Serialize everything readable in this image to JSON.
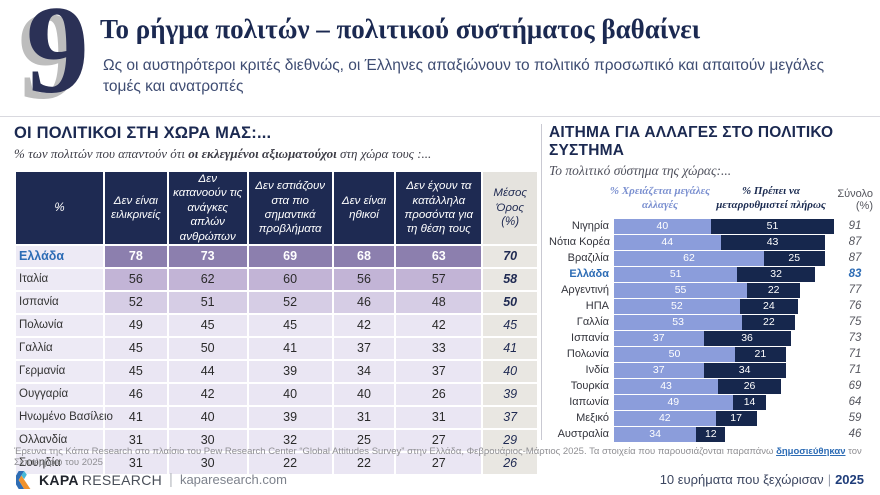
{
  "header": {
    "number": "9",
    "title": "Το ρήγμα πολιτών – πολιτικού συστήματος βαθαίνει",
    "subtitle": "Ως οι αυστηρότεροι κριτές διεθνώς, οι Έλληνες απαξιώνουν το πολιτικό προσωπικό και απαιτούν μεγάλες τομές και ανατροπές"
  },
  "left_panel": {
    "title": "ΟΙ ΠΟΛΙΤΙΚΟΙ ΣΤΗ ΧΩΡΑ ΜΑΣ:...",
    "subtitle_prefix": "% των πολιτών που απαντούν ότι ",
    "subtitle_bold": "οι εκλεγμένοι αξιωματούχοι",
    "subtitle_suffix": " στη χώρα τους :...",
    "table": {
      "columns": [
        "%",
        "Δεν είναι ειλικρινείς",
        "Δεν κατανοούν τις ανάγκες απλών ανθρώπων",
        "Δεν εστιάζουν στα πιο σημαντικά προβλήματα",
        "Δεν είναι ηθικοί",
        "Δεν έχουν τα κατάλληλα προσόντα για τη θέση τους",
        "Μέσος Όρος (%)"
      ],
      "rows": [
        {
          "country": "Ελλάδα",
          "values": [
            78,
            73,
            69,
            68,
            63
          ],
          "avg": 70,
          "highlight": true
        },
        {
          "country": "Ιταλία",
          "values": [
            56,
            62,
            60,
            56,
            57
          ],
          "avg": 58
        },
        {
          "country": "Ισπανία",
          "values": [
            52,
            51,
            52,
            46,
            48
          ],
          "avg": 50
        },
        {
          "country": "Πολωνία",
          "values": [
            49,
            45,
            45,
            42,
            42
          ],
          "avg": 45
        },
        {
          "country": "Γαλλία",
          "values": [
            45,
            50,
            41,
            37,
            33
          ],
          "avg": 41
        },
        {
          "country": "Γερμανία",
          "values": [
            45,
            44,
            39,
            34,
            37
          ],
          "avg": 40
        },
        {
          "country": "Ουγγαρία",
          "values": [
            46,
            42,
            40,
            40,
            26
          ],
          "avg": 39
        },
        {
          "country": "Ηνωμένο Βασίλειο",
          "values": [
            41,
            40,
            39,
            31,
            31
          ],
          "avg": 37
        },
        {
          "country": "Ολλανδία",
          "values": [
            31,
            30,
            32,
            25,
            27
          ],
          "avg": 29
        },
        {
          "country": "Σουηδία",
          "values": [
            31,
            30,
            22,
            22,
            27
          ],
          "avg": 26
        }
      ]
    }
  },
  "right_panel": {
    "title": "ΑΙΤΗΜΑ ΓΙΑ ΑΛΛΑΓΕΣ ΣΤΟ ΠΟΛΙΤΙΚΟ ΣΥΣΤΗΜΑ",
    "subtitle": "Το πολιτικό σύστημα της χώρας:...",
    "legend_light": "% Χρειάζεται μεγάλες αλλαγές",
    "legend_dark": "% Πρέπει να μεταρρυθμιστεί πλήρως",
    "legend_total": "Σύνολο (%)",
    "bars": [
      {
        "country": "Νιγηρία",
        "light": 40,
        "dark": 51,
        "total": 91
      },
      {
        "country": "Νότια Κορέα",
        "light": 44,
        "dark": 43,
        "total": 87
      },
      {
        "country": "Βραζιλία",
        "light": 62,
        "dark": 25,
        "total": 87
      },
      {
        "country": "Ελλάδα",
        "light": 51,
        "dark": 32,
        "total": 83,
        "highlight": true
      },
      {
        "country": "Αργεντινή",
        "light": 55,
        "dark": 22,
        "total": 77
      },
      {
        "country": "ΗΠΑ",
        "light": 52,
        "dark": 24,
        "total": 76
      },
      {
        "country": "Γαλλία",
        "light": 53,
        "dark": 22,
        "total": 75
      },
      {
        "country": "Ισπανία",
        "light": 37,
        "dark": 36,
        "total": 73
      },
      {
        "country": "Πολωνία",
        "light": 50,
        "dark": 21,
        "total": 71
      },
      {
        "country": "Ινδία",
        "light": 37,
        "dark": 34,
        "total": 71
      },
      {
        "country": "Τουρκία",
        "light": 43,
        "dark": 26,
        "total": 69
      },
      {
        "country": "Ιαπωνία",
        "light": 49,
        "dark": 14,
        "total": 64
      },
      {
        "country": "Μεξικό",
        "light": 42,
        "dark": 17,
        "total": 59
      },
      {
        "country": "Αυστραλία",
        "light": 34,
        "dark": 12,
        "total": 46
      }
    ]
  },
  "chart_data": [
    {
      "type": "table",
      "title": "ΟΙ ΠΟΛΙΤΙΚΟΙ ΣΤΗ ΧΩΡΑ ΜΑΣ:...",
      "subtitle": "% των πολιτών που απαντούν ότι οι εκλεγμένοι αξιωματούχοι στη χώρα τους :...",
      "columns": [
        "Δεν είναι ειλικρινείς",
        "Δεν κατανοούν τις ανάγκες απλών ανθρώπων",
        "Δεν εστιάζουν στα πιο σημαντικά προβλήματα",
        "Δεν είναι ηθικοί",
        "Δεν έχουν τα κατάλληλα προσόντα για τη θέση τους",
        "Μέσος Όρος (%)"
      ],
      "categories": [
        "Ελλάδα",
        "Ιταλία",
        "Ισπανία",
        "Πολωνία",
        "Γαλλία",
        "Γερμανία",
        "Ουγγαρία",
        "Ηνωμένο Βασίλειο",
        "Ολλανδία",
        "Σουηδία"
      ],
      "values": [
        [
          78,
          73,
          69,
          68,
          63,
          70
        ],
        [
          56,
          62,
          60,
          56,
          57,
          58
        ],
        [
          52,
          51,
          52,
          46,
          48,
          50
        ],
        [
          49,
          45,
          45,
          42,
          42,
          45
        ],
        [
          45,
          50,
          41,
          37,
          33,
          41
        ],
        [
          45,
          44,
          39,
          34,
          37,
          40
        ],
        [
          46,
          42,
          40,
          40,
          26,
          39
        ],
        [
          41,
          40,
          39,
          31,
          31,
          37
        ],
        [
          31,
          30,
          32,
          25,
          27,
          29
        ],
        [
          31,
          30,
          22,
          22,
          27,
          26
        ]
      ]
    },
    {
      "type": "bar",
      "orientation": "horizontal-stacked",
      "title": "ΑΙΤΗΜΑ ΓΙΑ ΑΛΛΑΓΕΣ ΣΤΟ ΠΟΛΙΤΙΚΟ ΣΥΣΤΗΜΑ",
      "subtitle": "Το πολιτικό σύστημα της χώρας:...",
      "categories": [
        "Νιγηρία",
        "Νότια Κορέα",
        "Βραζιλία",
        "Ελλάδα",
        "Αργεντινή",
        "ΗΠΑ",
        "Γαλλία",
        "Ισπανία",
        "Πολωνία",
        "Ινδία",
        "Τουρκία",
        "Ιαπωνία",
        "Μεξικό",
        "Αυστραλία"
      ],
      "series": [
        {
          "name": "% Χρειάζεται μεγάλες αλλαγές",
          "color": "#8b9ddb",
          "values": [
            40,
            44,
            62,
            51,
            55,
            52,
            53,
            37,
            50,
            37,
            43,
            49,
            42,
            34
          ]
        },
        {
          "name": "% Πρέπει να μεταρρυθμιστεί πλήρως",
          "color": "#16274d",
          "values": [
            51,
            43,
            25,
            32,
            22,
            24,
            22,
            36,
            21,
            34,
            26,
            14,
            17,
            12
          ]
        }
      ],
      "totals": [
        91,
        87,
        87,
        83,
        77,
        76,
        75,
        73,
        71,
        71,
        69,
        64,
        59,
        46
      ],
      "totals_label": "Σύνολο (%)",
      "xlim": [
        0,
        100
      ],
      "legend_position": "top",
      "grid": false
    }
  ],
  "footnote": {
    "prefix": "Έρευνα της Κάπα Research στο πλαίσιο του Pew Research Center “Global Attitudes Survey” στην Ελλάδα, Φεβρουάριος-Μάρτιος 2025. Τα στοιχεία που παρουσιάζονται παραπάνω ",
    "link_text": "δημοσιεύθηκαν",
    "suffix": " τον Σεπτέμβριο του 2025"
  },
  "footer": {
    "brand_bold": "KAPA",
    "brand_light": "RESEARCH",
    "site": "kaparesearch.com",
    "right_text": "10 ευρήματα που ξεχώρισαν",
    "right_year": "2025"
  },
  "colors": {
    "navy": "#1e2a52",
    "greece_blue": "#2d6cb5",
    "bar_light": "#8b9ddb",
    "bar_dark": "#16274d",
    "row_tier0": "#8c7fae",
    "row_tier1": "#c2b4d6",
    "row_tier2": "#d6cde5",
    "row_tier3": "#eae6f3"
  }
}
